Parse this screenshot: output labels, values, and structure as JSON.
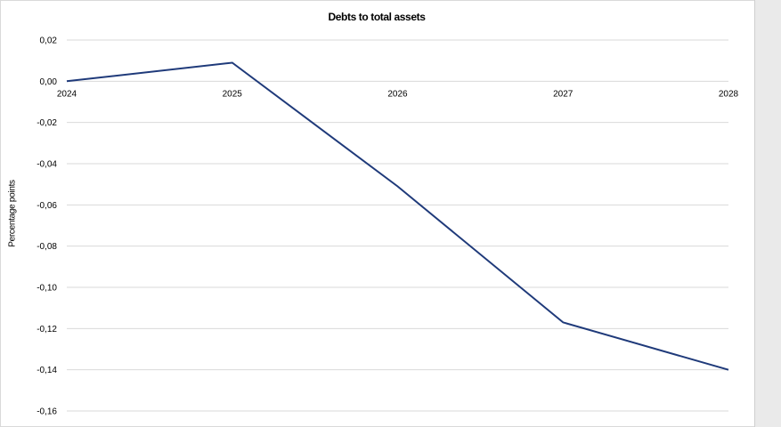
{
  "chart_data": {
    "type": "line",
    "title": "Debts to total assets",
    "ylabel": "Percentage points",
    "xlabel": "",
    "x": [
      "2024",
      "2025",
      "2026",
      "2027",
      "2028"
    ],
    "series": [
      {
        "values": [
          0.0,
          0.009,
          -0.051,
          -0.117,
          -0.14
        ]
      }
    ],
    "ylim": [
      -0.16,
      0.02
    ],
    "yticks": [
      0.02,
      0.0,
      -0.02,
      -0.04,
      -0.06,
      -0.08,
      -0.1,
      -0.12,
      -0.14,
      -0.16
    ],
    "ytick_labels": [
      "0,02",
      "0,00",
      "-0,02",
      "-0,04",
      "-0,06",
      "-0,08",
      "-0,10",
      "-0,12",
      "-0,14",
      "-0,16"
    ],
    "grid": true,
    "line_color": "#1f3a7a"
  }
}
